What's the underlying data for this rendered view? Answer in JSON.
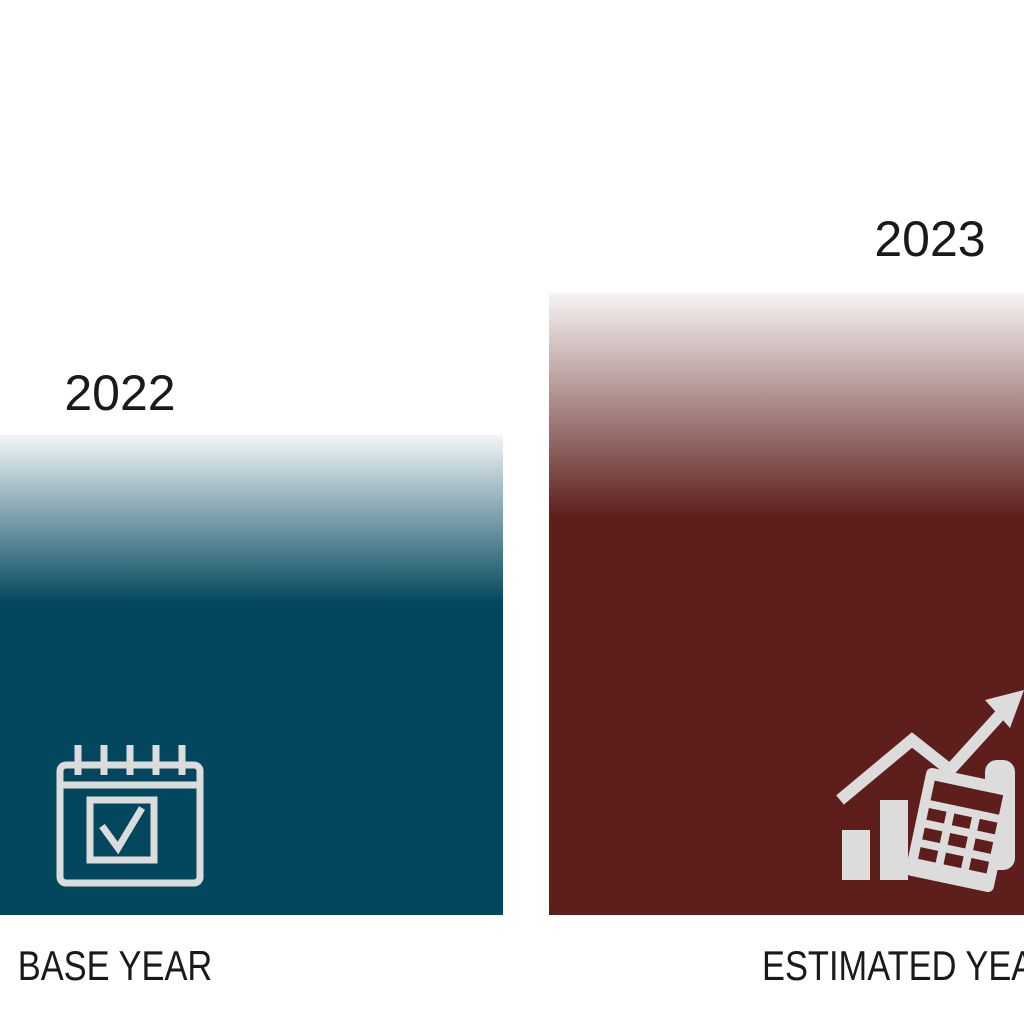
{
  "panels": [
    {
      "year": "2022",
      "label": "BASE YEAR"
    },
    {
      "year": "2023",
      "label": "ESTIMATED YEAR"
    }
  ]
}
